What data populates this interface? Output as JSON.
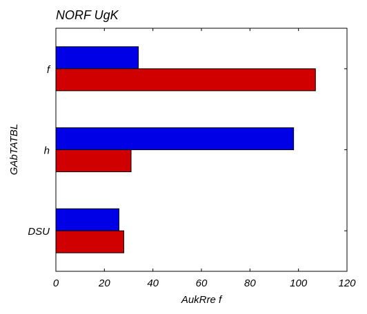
{
  "chart_data": {
    "type": "bar",
    "orientation": "horizontal",
    "title": "NORF UgK",
    "xlabel": "AukRre  f",
    "ylabel": "GAbTATBL",
    "categories": [
      "f",
      "h",
      "DSU"
    ],
    "series": [
      {
        "color": "#0000e6",
        "values": [
          34,
          98,
          26
        ]
      },
      {
        "color": "#d10000",
        "values": [
          107,
          31,
          28
        ]
      }
    ],
    "xlim": [
      0,
      120
    ],
    "xticks": [
      0,
      20,
      40,
      60,
      80,
      100,
      120
    ],
    "grid": false,
    "legend": "none"
  }
}
